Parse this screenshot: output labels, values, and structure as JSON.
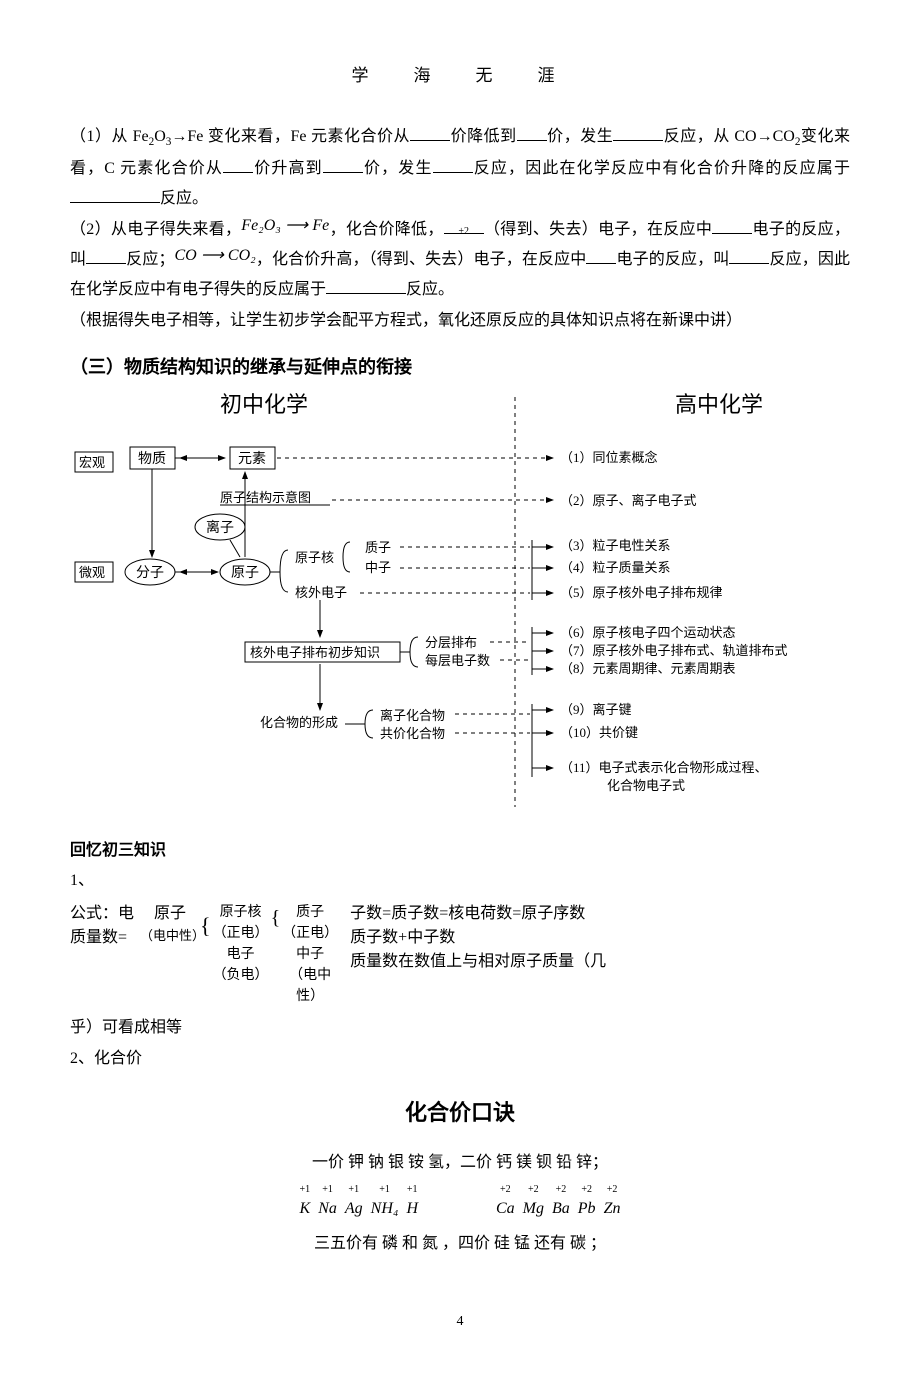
{
  "header": "学　海　无　涯",
  "q1": {
    "prefix": "（1）从 Fe",
    "t1": "O",
    "t2": "→Fe 变化来看，Fe 元素化合价从",
    "t3": "价降低到",
    "t4": "价，发生",
    "t5": "反应，从 CO→CO",
    "t6": "变化来看，C 元素化合价从",
    "t7": "价升高到",
    "t8": "价，发生",
    "t9": "反应，因此在化学反应中有化合价升降的反应属于",
    "t10": "反应。"
  },
  "q2": {
    "t1": "（2）从电子得失来看，",
    "fe": "Fe₂O₃ ⟶ Fe",
    "t2": "，化合价降低，",
    "t3": "（得到、失去）电子，在反应中",
    "t4": "电子的反应，叫",
    "t5": "反应；",
    "co": "CO ⟶ CO₂",
    "charge": "+2",
    "t6": "，化合价升高，（得到、失去）电子，在反应中",
    "t7": "电子的反应，叫",
    "t8": "反应，因此在化学反应中有电子得失的反应属于",
    "t9": "反应。"
  },
  "note": "（根据得失电子相等，让学生初步学会配平方程式，氧化还原反应的具体知识点将在新课中讲）",
  "section3": "（三）物质结构知识的继承与延伸点的衔接",
  "diagram": {
    "left_title": "初中化学",
    "right_title": "高中化学",
    "macro": "宏观",
    "micro": "微观",
    "wuzhi": "物质",
    "yuansu": "元素",
    "fenzi": "分子",
    "yuanzi": "原子",
    "lizi": "离子",
    "schematic": "原子结构示意图",
    "hexnode": "原子核",
    "zhizi": "质子",
    "zhongzi": "中子",
    "hewai": "核外电子",
    "paibu": "核外电子排布初步知识",
    "fenceng": "分层排布",
    "meiceng": "每层电子数",
    "huahe": "化合物的形成",
    "lizihua": "离子化合物",
    "gongjia": "共价化合物",
    "r1": "（1）同位素概念",
    "r2": "（2）原子、离子电子式",
    "r3": "（3）粒子电性关系",
    "r4": "（4）粒子质量关系",
    "r5": "（5）原子核外电子排布规律",
    "r6": "（6）原子核电子四个运动状态",
    "r7": "（7）原子核外电子排布式、轨道排布式",
    "r8": "（8）元素周期律、元素周期表",
    "r9": "（9）离子键",
    "r10": "（10）共价键",
    "r11a": "（11）电子式表示化合物形成过程、",
    "r11b": "化合物电子式"
  },
  "recall": "回忆初三知识",
  "item1": "1、",
  "atom": {
    "gs": "公式：电",
    "zls": "质量数=",
    "yuanzi": "原子",
    "zhongxing": "（电中性）",
    "hex": "原子核",
    "zhengdian": "（正电）",
    "dianzi": "电子",
    "fudian": "（负电）",
    "zhizi": "质子",
    "zhongzi": "中子",
    "zhongxing2": "（电中性）",
    "eq1": "子数=质子数=核电荷数=原子序数",
    "eq2": "质子数+中子数",
    "eq3": "质量数在数值上与相对原子质量（几"
  },
  "tail1": "乎）可看成相等",
  "item2": "2、化合价",
  "koujue_title": "化合价口诀",
  "line1": "一价 钾 钠 银 铵 氢，二价 钙 镁 钡 铅 锌；",
  "line2": "三五价有 磷 和 氮 ，四价 硅 锰 还有 碳 ；",
  "elems1": [
    {
      "s": "K",
      "c": "+1"
    },
    {
      "s": "Na",
      "c": "+1"
    },
    {
      "s": "Ag",
      "c": "+1"
    },
    {
      "s": "NH₄",
      "c": "+1"
    },
    {
      "s": "H",
      "c": "+1"
    }
  ],
  "elems2": [
    {
      "s": "Ca",
      "c": "+2"
    },
    {
      "s": "Mg",
      "c": "+2"
    },
    {
      "s": "Ba",
      "c": "+2"
    },
    {
      "s": "Pb",
      "c": "+2"
    },
    {
      "s": "Zn",
      "c": "+2"
    }
  ],
  "pagenum": "4"
}
